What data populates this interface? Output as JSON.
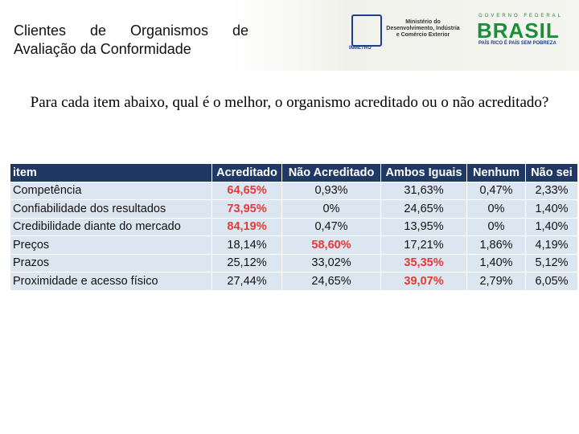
{
  "header": {
    "title_lines": [
      "Clientes de Organismos de",
      "Avaliação da Conformidade"
    ],
    "inmetro": "INMETRO",
    "ministry": [
      "Ministério do",
      "Desenvolvimento, Indústria",
      "e Comércio Exterior"
    ],
    "gov": "GOVERNO FEDERAL",
    "brasil": "BRASIL",
    "slogan": "PAÍS RICO É PAÍS SEM POBREZA"
  },
  "question": "Para cada item abaixo, qual é o melhor, o organismo acreditado ou o não acreditado?",
  "table": {
    "columns": [
      "item",
      "Acreditado",
      "Não Acreditado",
      "Ambos Iguais",
      "Nenhum",
      "Não sei"
    ],
    "rows": [
      [
        "Competência",
        "64,65%",
        "0,93%",
        "31,63%",
        "0,47%",
        "2,33%"
      ],
      [
        "Confiabilidade dos resultados",
        "73,95%",
        "0%",
        "24,65%",
        "0%",
        "1,40%"
      ],
      [
        "Credibilidade diante do mercado",
        "84,19%",
        "0,47%",
        "13,95%",
        "0%",
        "1,40%"
      ],
      [
        "Preços",
        "18,14%",
        "58,60%",
        "17,21%",
        "1,86%",
        "4,19%"
      ],
      [
        "Prazos",
        "25,12%",
        "33,02%",
        "35,35%",
        "1,40%",
        "5,12%"
      ],
      [
        "Proximidade e acesso físico",
        "27,44%",
        "24,65%",
        "39,07%",
        "2,79%",
        "6,05%"
      ]
    ]
  }
}
